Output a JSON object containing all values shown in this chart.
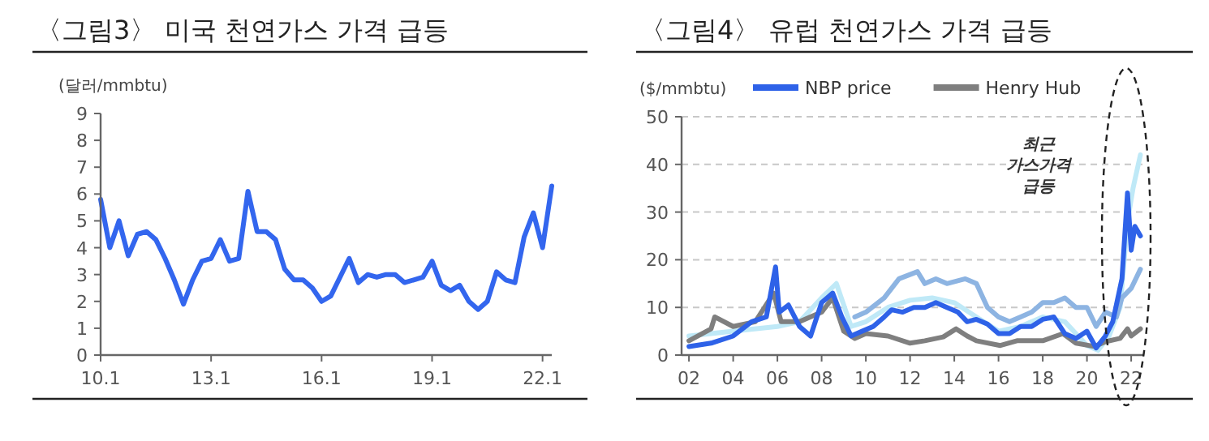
{
  "chart_data": [
    {
      "type": "line",
      "title": "〈그림3〉 미국 천연가스 가격 급등",
      "ylabel": "(달러/mmbtu)",
      "categories": [
        "10.1",
        null,
        null,
        null,
        null,
        null,
        null,
        null,
        null,
        null,
        null,
        null,
        "13.1",
        null,
        null,
        null,
        null,
        null,
        null,
        null,
        null,
        null,
        null,
        null,
        "16.1",
        null,
        null,
        null,
        null,
        null,
        null,
        null,
        null,
        null,
        null,
        null,
        "19.1",
        null,
        null,
        null,
        null,
        null,
        null,
        null,
        null,
        null,
        null,
        null,
        "22.1",
        null
      ],
      "ylim": [
        0,
        9
      ],
      "yticks": [
        0,
        1,
        2,
        3,
        4,
        5,
        6,
        7,
        8,
        9
      ],
      "grid": false,
      "legend": false,
      "series": [
        {
          "color": "#3366ee",
          "values": [
            5.8,
            4.0,
            5.0,
            3.7,
            4.5,
            4.6,
            4.3,
            3.6,
            2.8,
            1.9,
            2.8,
            3.5,
            3.6,
            4.3,
            3.5,
            3.6,
            6.1,
            4.6,
            4.6,
            4.3,
            3.2,
            2.8,
            2.8,
            2.5,
            2.0,
            2.2,
            2.9,
            3.6,
            2.7,
            3.0,
            2.9,
            3.0,
            3.0,
            2.7,
            2.8,
            2.9,
            3.5,
            2.6,
            2.4,
            2.6,
            2.0,
            1.7,
            2.0,
            3.1,
            2.8,
            2.7,
            4.4,
            5.3,
            4.0,
            6.3
          ]
        }
      ]
    },
    {
      "type": "line",
      "title": "〈그림4〉 유럽 천연가스 가격 급등",
      "ylabel": "($/mmbtu)",
      "xlim": [
        "2001-09",
        "2022-08"
      ],
      "xticks": [
        {
          "value": "2002-01",
          "label": "02"
        },
        {
          "value": "2004-01",
          "label": "04"
        },
        {
          "value": "2006-01",
          "label": "06"
        },
        {
          "value": "2008-01",
          "label": "08"
        },
        {
          "value": "2010-01",
          "label": "10"
        },
        {
          "value": "2012-01",
          "label": "12"
        },
        {
          "value": "2014-01",
          "label": "14"
        },
        {
          "value": "2016-01",
          "label": "16"
        },
        {
          "value": "2018-01",
          "label": "18"
        },
        {
          "value": "2020-01",
          "label": "20"
        },
        {
          "value": "2022-01",
          "label": "22"
        }
      ],
      "ylim": [
        0,
        50
      ],
      "yticks": [
        0,
        10,
        20,
        30,
        40,
        50
      ],
      "grid": "y",
      "legend": "top",
      "annotations": [
        "최근 가스가격 급등"
      ],
      "series": [
        {
          "color": "#bfe9f7",
          "x": [
            "2002-01",
            "2004-01",
            "2006-01",
            "2007-01",
            "2008-01",
            "2008-09",
            "2009-05",
            "2010-01",
            "2011-01",
            "2012-01",
            "2013-01",
            "2014-01",
            "2015-01",
            "2016-01",
            "2017-01",
            "2018-01",
            "2019-01",
            "2020-01",
            "2020-07",
            "2021-01",
            "2021-07",
            "2021-11",
            "2022-02",
            "2022-06"
          ],
          "values": [
            4,
            5,
            6,
            7,
            12,
            15,
            6,
            7,
            10,
            11.5,
            12,
            11,
            8,
            5,
            6,
            8,
            7,
            2,
            1,
            4,
            10,
            28,
            35,
            42
          ]
        },
        {
          "color": "#8db4e2",
          "x": [
            "2009-07",
            "2010-01",
            "2010-11",
            "2011-07",
            "2012-05",
            "2012-09",
            "2013-03",
            "2013-09",
            "2014-07",
            "2015-01",
            "2015-07",
            "2016-01",
            "2016-07",
            "2017-01",
            "2017-07",
            "2018-01",
            "2018-07",
            "2019-01",
            "2019-07",
            "2020-01",
            "2020-06",
            "2020-11",
            "2021-05",
            "2021-08",
            "2022-01",
            "2022-06"
          ],
          "values": [
            8,
            9,
            12,
            16,
            17.5,
            15,
            16,
            15,
            16,
            15,
            10,
            8,
            7,
            8,
            9,
            11,
            11,
            12,
            10,
            10,
            6,
            9,
            8,
            12,
            14,
            18
          ]
        },
        {
          "name": "Henry Hub",
          "color": "#7f7f7f",
          "x": [
            "2002-01",
            "2003-01",
            "2003-03",
            "2004-01",
            "2005-01",
            "2005-11",
            "2006-03",
            "2007-01",
            "2008-01",
            "2008-07",
            "2009-01",
            "2009-07",
            "2010-01",
            "2011-01",
            "2012-01",
            "2012-09",
            "2013-07",
            "2014-02",
            "2014-08",
            "2015-01",
            "2016-02",
            "2016-11",
            "2017-07",
            "2018-01",
            "2018-12",
            "2019-07",
            "2020-05",
            "2020-11",
            "2021-07",
            "2021-11",
            "2022-01",
            "2022-06"
          ],
          "values": [
            3,
            5.5,
            8,
            6,
            7,
            13,
            7,
            7,
            9,
            12,
            5,
            3.5,
            4.5,
            4,
            2.5,
            3,
            3.8,
            5.5,
            4,
            3,
            2,
            3,
            3,
            3,
            4.5,
            2.5,
            1.8,
            2.8,
            3.5,
            5.5,
            4,
            5.5
          ]
        },
        {
          "name": "NBP price",
          "color": "#2e62e8",
          "x": [
            "2002-01",
            "2003-01",
            "2004-01",
            "2004-11",
            "2005-07",
            "2005-12",
            "2006-02",
            "2006-07",
            "2007-01",
            "2007-07",
            "2008-01",
            "2008-07",
            "2008-12",
            "2009-05",
            "2009-11",
            "2010-05",
            "2010-11",
            "2011-03",
            "2011-09",
            "2012-03",
            "2012-09",
            "2013-03",
            "2013-09",
            "2014-03",
            "2014-08",
            "2015-01",
            "2015-07",
            "2016-01",
            "2016-07",
            "2017-01",
            "2017-07",
            "2018-01",
            "2018-07",
            "2019-01",
            "2019-07",
            "2020-01",
            "2020-06",
            "2020-11",
            "2021-03",
            "2021-08",
            "2021-11",
            "2022-01",
            "2022-03",
            "2022-06"
          ],
          "values": [
            1.8,
            2.5,
            4,
            7,
            8,
            18.5,
            9,
            10.5,
            6,
            4,
            11,
            13,
            8,
            4,
            5,
            6,
            8,
            9.5,
            9,
            10,
            10,
            11,
            10,
            9,
            7,
            7.5,
            6.5,
            4.5,
            4.5,
            6,
            6,
            7.5,
            8,
            4.5,
            3.5,
            5,
            1.5,
            4,
            7,
            16,
            34,
            22,
            27,
            25
          ]
        }
      ]
    }
  ]
}
